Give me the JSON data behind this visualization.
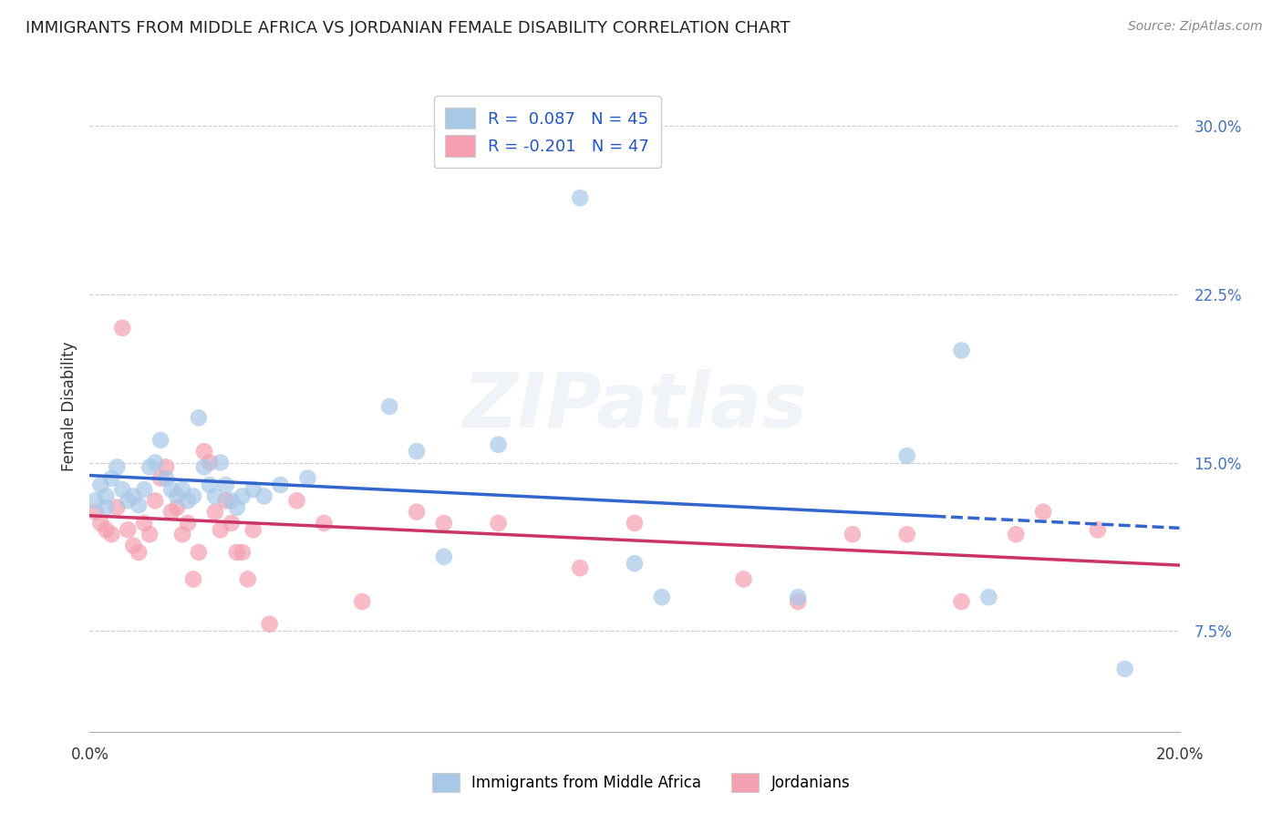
{
  "title": "IMMIGRANTS FROM MIDDLE AFRICA VS JORDANIAN FEMALE DISABILITY CORRELATION CHART",
  "source": "Source: ZipAtlas.com",
  "xlabel": "",
  "ylabel": "Female Disability",
  "xmin": 0.0,
  "xmax": 0.2,
  "ymin": 0.03,
  "ymax": 0.32,
  "yticks": [
    0.075,
    0.15,
    0.225,
    0.3
  ],
  "ytick_labels": [
    "7.5%",
    "15.0%",
    "22.5%",
    "30.0%"
  ],
  "xticks": [
    0.0,
    0.04,
    0.08,
    0.12,
    0.16,
    0.2
  ],
  "xtick_labels": [
    "0.0%",
    "",
    "",
    "",
    "",
    "20.0%"
  ],
  "blue_color": "#a8c8e8",
  "pink_color": "#f4a0b0",
  "blue_line_color": "#3366cc",
  "pink_line_color": "#cc3366",
  "r_blue": 0.087,
  "n_blue": 45,
  "r_pink": -0.201,
  "n_pink": 47,
  "legend_label_blue": "Immigrants from Middle Africa",
  "legend_label_pink": "Jordanians",
  "watermark": "ZIPatlas",
  "blue_scatter_x": [
    0.001,
    0.002,
    0.003,
    0.003,
    0.004,
    0.005,
    0.006,
    0.007,
    0.008,
    0.009,
    0.01,
    0.011,
    0.012,
    0.013,
    0.014,
    0.015,
    0.016,
    0.017,
    0.018,
    0.019,
    0.02,
    0.021,
    0.022,
    0.023,
    0.024,
    0.025,
    0.026,
    0.027,
    0.028,
    0.03,
    0.032,
    0.035,
    0.04,
    0.055,
    0.06,
    0.065,
    0.075,
    0.09,
    0.1,
    0.105,
    0.13,
    0.15,
    0.16,
    0.165,
    0.19
  ],
  "blue_scatter_y": [
    0.133,
    0.14,
    0.135,
    0.13,
    0.143,
    0.148,
    0.138,
    0.133,
    0.135,
    0.131,
    0.138,
    0.148,
    0.15,
    0.16,
    0.143,
    0.138,
    0.135,
    0.138,
    0.133,
    0.135,
    0.17,
    0.148,
    0.14,
    0.135,
    0.15,
    0.14,
    0.133,
    0.13,
    0.135,
    0.138,
    0.135,
    0.14,
    0.143,
    0.175,
    0.155,
    0.108,
    0.158,
    0.268,
    0.105,
    0.09,
    0.09,
    0.153,
    0.2,
    0.09,
    0.058
  ],
  "pink_scatter_x": [
    0.001,
    0.002,
    0.003,
    0.004,
    0.005,
    0.006,
    0.007,
    0.008,
    0.009,
    0.01,
    0.011,
    0.012,
    0.013,
    0.014,
    0.015,
    0.016,
    0.017,
    0.018,
    0.019,
    0.02,
    0.021,
    0.022,
    0.023,
    0.024,
    0.025,
    0.026,
    0.027,
    0.028,
    0.029,
    0.03,
    0.033,
    0.038,
    0.043,
    0.05,
    0.06,
    0.065,
    0.075,
    0.09,
    0.1,
    0.12,
    0.13,
    0.14,
    0.15,
    0.16,
    0.17,
    0.175,
    0.185
  ],
  "pink_scatter_y": [
    0.128,
    0.123,
    0.12,
    0.118,
    0.13,
    0.21,
    0.12,
    0.113,
    0.11,
    0.123,
    0.118,
    0.133,
    0.143,
    0.148,
    0.128,
    0.13,
    0.118,
    0.123,
    0.098,
    0.11,
    0.155,
    0.15,
    0.128,
    0.12,
    0.133,
    0.123,
    0.11,
    0.11,
    0.098,
    0.12,
    0.078,
    0.133,
    0.123,
    0.088,
    0.128,
    0.123,
    0.123,
    0.103,
    0.123,
    0.098,
    0.088,
    0.118,
    0.118,
    0.088,
    0.118,
    0.128,
    0.12
  ]
}
